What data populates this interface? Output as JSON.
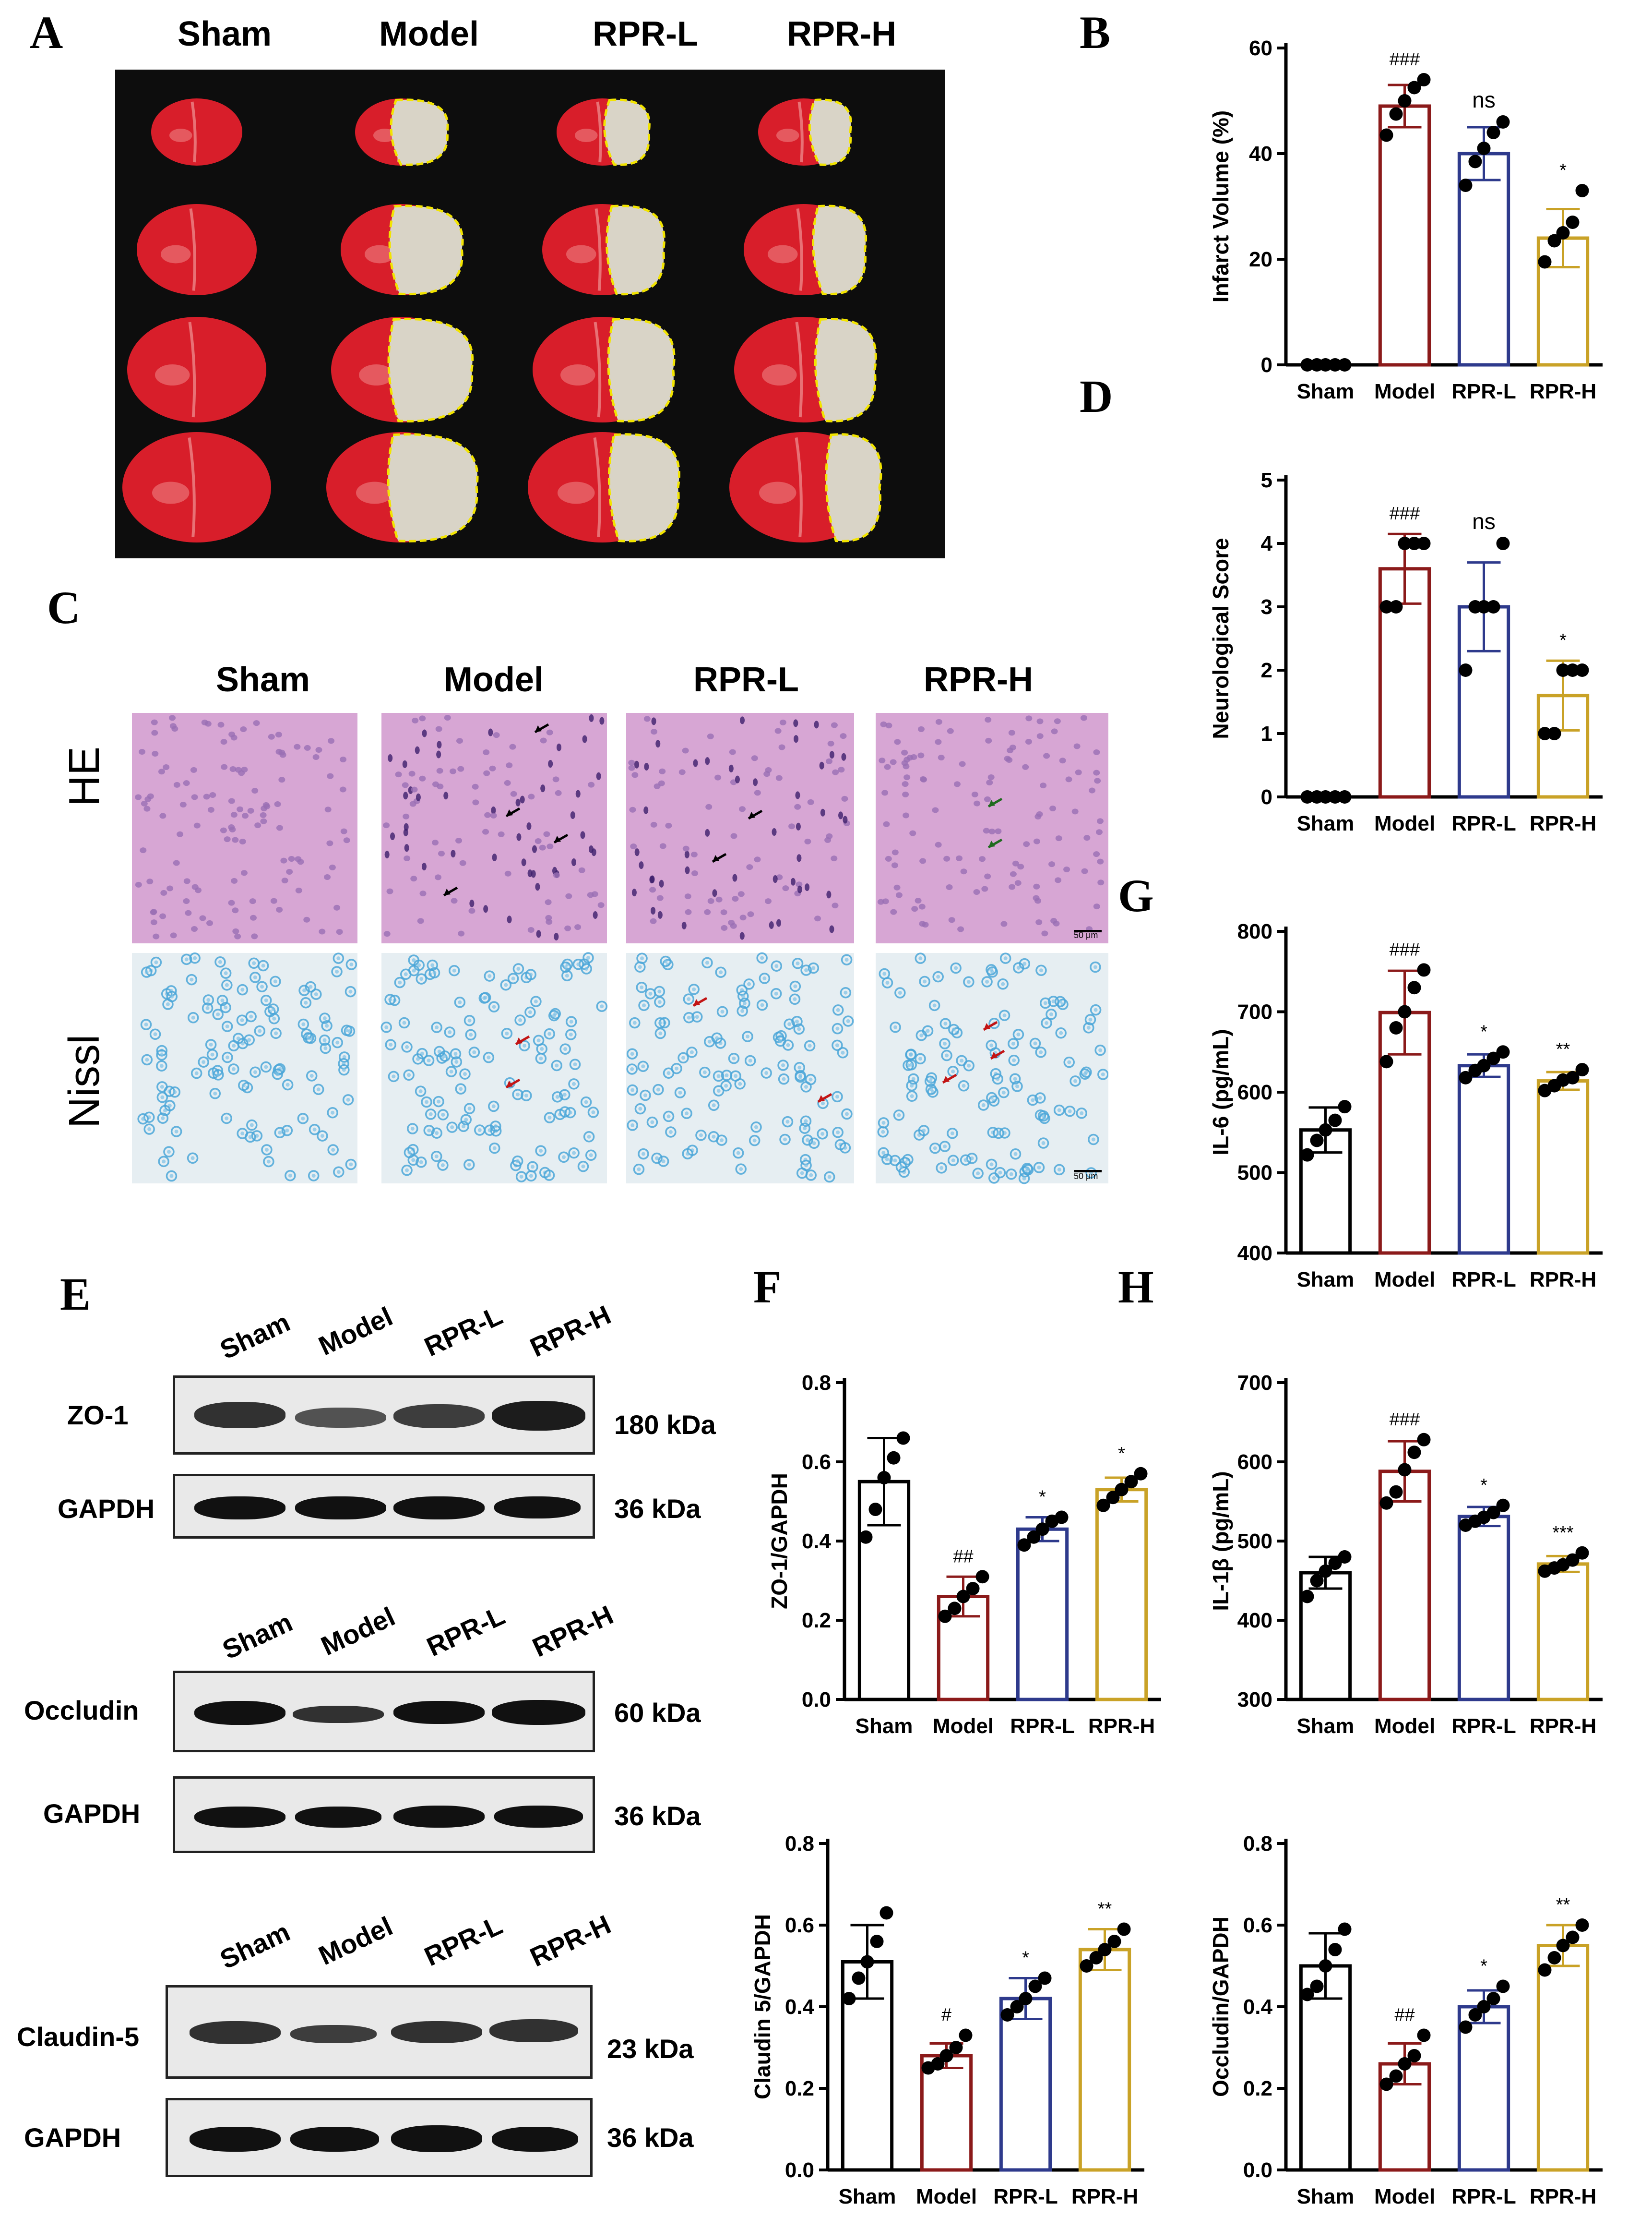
{
  "panel_letters": {
    "A": "A",
    "B": "B",
    "C": "C",
    "D": "D",
    "E": "E",
    "F": "F",
    "G": "G",
    "H": "H"
  },
  "groups": [
    "Sham",
    "Model",
    "RPR-L",
    "RPR-H"
  ],
  "histology": {
    "row_labels": [
      "HE",
      "Nissl"
    ],
    "scale_bar": "50 μm"
  },
  "blots": {
    "zo1": {
      "protein": "ZO-1",
      "protein_kda": "180 kDa",
      "loading": "GAPDH",
      "loading_kda": "36 kDa"
    },
    "occludin": {
      "protein": "Occludin",
      "protein_kda": "60 kDa",
      "loading": "GAPDH",
      "loading_kda": "36 kDa"
    },
    "claudin": {
      "protein": "Claudin-5",
      "protein_kda": "23 kDa",
      "loading": "GAPDH",
      "loading_kda": "36 kDa"
    }
  },
  "colors": {
    "Sham": "#000000",
    "Model": "#8b1a1a",
    "RPR-L": "#2e3a8c",
    "RPR-H": "#c9a227",
    "background_A": "#0d0d0d",
    "tissue_red": "#d81e2a",
    "infarct": "#d9d4c7",
    "outline": "#f2e400",
    "he_bg": "#d7a6d4",
    "nissl_bg": "#e6eef2"
  },
  "chart_data": [
    {
      "id": "B",
      "type": "bar",
      "categories": [
        "Sham",
        "Model",
        "RPR-L",
        "RPR-H"
      ],
      "ylabel": "Infarct Volume (%)",
      "ylim": [
        0,
        60
      ],
      "yticks": [
        0,
        20,
        40,
        60
      ],
      "means": [
        0,
        49,
        40,
        24
      ],
      "sd": [
        0,
        4,
        5,
        5.5
      ],
      "points": [
        [
          0,
          0,
          0,
          0,
          0
        ],
        [
          43.5,
          47.5,
          50,
          52.5,
          54
        ],
        [
          34,
          38.5,
          41,
          44,
          46
        ],
        [
          19.5,
          23.5,
          25,
          27,
          33
        ]
      ],
      "annotations": [
        "",
        "###",
        "ns",
        "*"
      ]
    },
    {
      "id": "D",
      "type": "bar",
      "categories": [
        "Sham",
        "Model",
        "RPR-L",
        "RPR-H"
      ],
      "ylabel": "Neurological Score",
      "ylim": [
        0,
        5
      ],
      "yticks": [
        0,
        1,
        2,
        3,
        4,
        5
      ],
      "means": [
        0,
        3.6,
        3,
        1.6
      ],
      "sd": [
        0,
        0.55,
        0.7,
        0.55
      ],
      "points": [
        [
          0,
          0,
          0,
          0,
          0
        ],
        [
          3,
          3,
          4,
          4,
          4
        ],
        [
          2,
          3,
          3,
          3,
          4
        ],
        [
          1,
          1,
          2,
          2,
          2
        ]
      ],
      "annotations": [
        "",
        "###",
        "ns",
        "*"
      ]
    },
    {
      "id": "G",
      "type": "bar",
      "categories": [
        "Sham",
        "Model",
        "RPR-L",
        "RPR-H"
      ],
      "ylabel": "IL-6 (pg/mL)",
      "ylim": [
        400,
        800
      ],
      "yticks": [
        400,
        500,
        600,
        700,
        800
      ],
      "means": [
        553,
        699,
        633,
        614
      ],
      "sd": [
        28,
        52,
        14,
        11
      ],
      "points": [
        [
          522,
          540,
          553,
          565,
          582
        ],
        [
          638,
          680,
          700,
          730,
          752
        ],
        [
          618,
          627,
          633,
          642,
          650
        ],
        [
          602,
          608,
          615,
          618,
          628
        ]
      ],
      "annotations": [
        "",
        "###",
        "*",
        "**"
      ]
    },
    {
      "id": "F1",
      "type": "bar",
      "categories": [
        "Sham",
        "Model",
        "RPR-L",
        "RPR-H"
      ],
      "ylabel": "ZO-1/GAPDH",
      "ylim": [
        0,
        0.8
      ],
      "yticks": [
        0.0,
        0.2,
        0.4,
        0.6,
        0.8
      ],
      "means": [
        0.55,
        0.26,
        0.43,
        0.53
      ],
      "sd": [
        0.11,
        0.05,
        0.03,
        0.03
      ],
      "points": [
        [
          0.41,
          0.48,
          0.56,
          0.61,
          0.66
        ],
        [
          0.21,
          0.23,
          0.26,
          0.28,
          0.31
        ],
        [
          0.39,
          0.41,
          0.43,
          0.45,
          0.46
        ],
        [
          0.49,
          0.51,
          0.53,
          0.55,
          0.57
        ]
      ],
      "annotations": [
        "",
        "##",
        "*",
        "*"
      ]
    },
    {
      "id": "H",
      "type": "bar",
      "categories": [
        "Sham",
        "Model",
        "RPR-L",
        "RPR-H"
      ],
      "ylabel": "IL-1β (pg/mL)",
      "ylim": [
        300,
        700
      ],
      "yticks": [
        300,
        400,
        500,
        600,
        700
      ],
      "means": [
        460,
        588,
        531,
        471
      ],
      "sd": [
        20,
        38,
        12,
        10
      ],
      "points": [
        [
          430,
          450,
          462,
          472,
          480
        ],
        [
          548,
          562,
          590,
          612,
          628
        ],
        [
          520,
          525,
          530,
          536,
          545
        ],
        [
          462,
          466,
          470,
          476,
          485
        ]
      ],
      "annotations": [
        "",
        "###",
        "*",
        "***"
      ]
    },
    {
      "id": "F2",
      "type": "bar",
      "categories": [
        "Sham",
        "Model",
        "RPR-L",
        "RPR-H"
      ],
      "ylabel": "Claudin 5/GAPDH",
      "ylim": [
        0,
        0.8
      ],
      "yticks": [
        0.0,
        0.2,
        0.4,
        0.6,
        0.8
      ],
      "means": [
        0.51,
        0.28,
        0.42,
        0.54
      ],
      "sd": [
        0.09,
        0.03,
        0.05,
        0.05
      ],
      "points": [
        [
          0.42,
          0.47,
          0.51,
          0.56,
          0.63
        ],
        [
          0.25,
          0.26,
          0.28,
          0.3,
          0.33
        ],
        [
          0.38,
          0.4,
          0.42,
          0.45,
          0.47
        ],
        [
          0.5,
          0.52,
          0.54,
          0.56,
          0.59
        ]
      ],
      "annotations": [
        "",
        "#",
        "*",
        "**"
      ]
    },
    {
      "id": "H2",
      "type": "bar",
      "categories": [
        "Sham",
        "Model",
        "RPR-L",
        "RPR-H"
      ],
      "ylabel": "Occludin/GAPDH",
      "ylim": [
        0,
        0.8
      ],
      "yticks": [
        0.0,
        0.2,
        0.4,
        0.6,
        0.8
      ],
      "means": [
        0.5,
        0.26,
        0.4,
        0.55
      ],
      "sd": [
        0.08,
        0.05,
        0.04,
        0.05
      ],
      "points": [
        [
          0.43,
          0.45,
          0.5,
          0.54,
          0.59
        ],
        [
          0.21,
          0.23,
          0.26,
          0.28,
          0.33
        ],
        [
          0.35,
          0.38,
          0.4,
          0.42,
          0.45
        ],
        [
          0.49,
          0.52,
          0.55,
          0.57,
          0.6
        ]
      ],
      "annotations": [
        "",
        "##",
        "*",
        "**"
      ]
    }
  ]
}
